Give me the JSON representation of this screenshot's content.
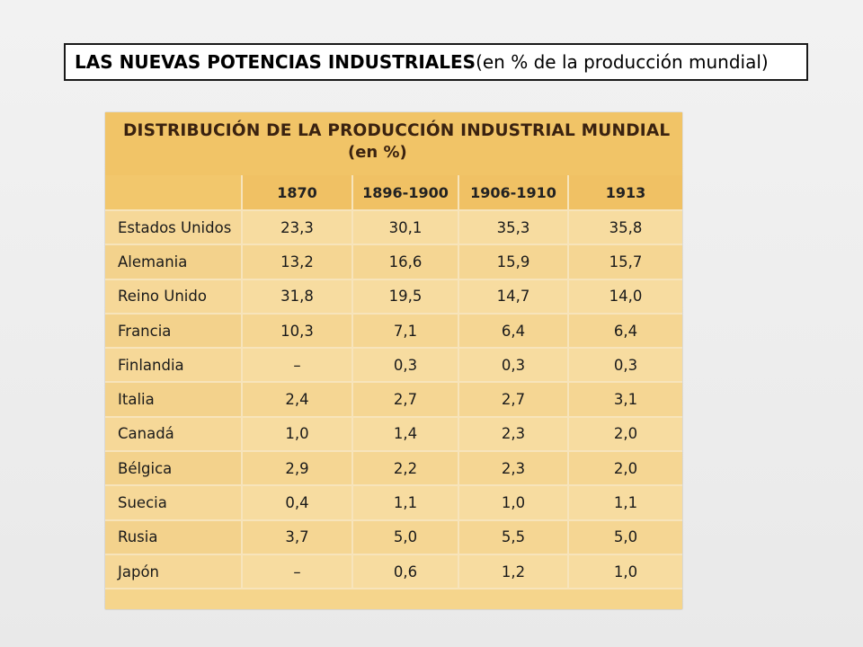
{
  "slide": {
    "title_bold": "LAS NUEVAS POTENCIAS INDUSTRIALES",
    "title_rest": " (en % de la producción mundial)"
  },
  "table": {
    "title": "DISTRIBUCIÓN DE LA PRODUCCIÓN INDUSTRIAL MUNDIAL",
    "subtitle": "(en %)",
    "columns": [
      "",
      "1870",
      "1896-1900",
      "1906-1910",
      "1913"
    ],
    "rows": [
      {
        "country": "Estados Unidos",
        "values": [
          "23,3",
          "30,1",
          "35,3",
          "35,8"
        ]
      },
      {
        "country": "Alemania",
        "values": [
          "13,2",
          "16,6",
          "15,9",
          "15,7"
        ]
      },
      {
        "country": "Reino Unido",
        "values": [
          "31,8",
          "19,5",
          "14,7",
          "14,0"
        ]
      },
      {
        "country": "Francia",
        "values": [
          "10,3",
          "7,1",
          "6,4",
          "6,4"
        ]
      },
      {
        "country": "Finlandia",
        "values": [
          "–",
          "0,3",
          "0,3",
          "0,3"
        ]
      },
      {
        "country": "Italia",
        "values": [
          "2,4",
          "2,7",
          "2,7",
          "3,1"
        ]
      },
      {
        "country": "Canadá",
        "values": [
          "1,0",
          "1,4",
          "2,3",
          "2,0"
        ]
      },
      {
        "country": "Bélgica",
        "values": [
          "2,9",
          "2,2",
          "2,3",
          "2,0"
        ]
      },
      {
        "country": "Suecia",
        "values": [
          "0,4",
          "1,1",
          "1,0",
          "1,1"
        ]
      },
      {
        "country": "Rusia",
        "values": [
          "3,7",
          "5,0",
          "5,5",
          "5,0"
        ]
      },
      {
        "country": "Japón",
        "values": [
          "–",
          "0,6",
          "1,2",
          "1,0"
        ]
      }
    ]
  }
}
